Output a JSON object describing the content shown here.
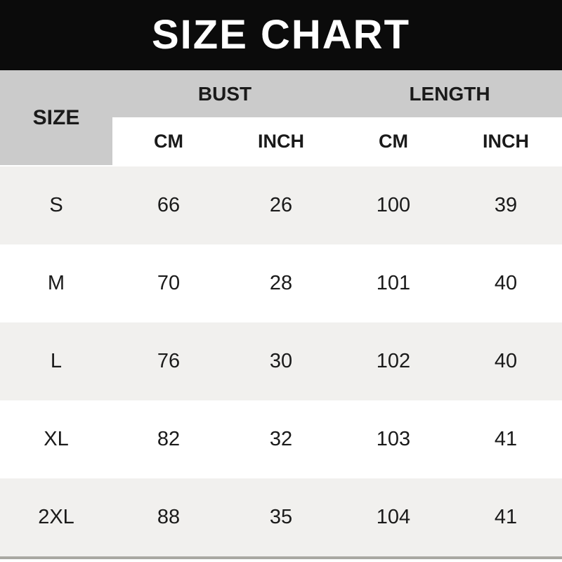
{
  "banner": {
    "title": "SIZE CHART"
  },
  "table": {
    "size_header": "SIZE",
    "group_headers": [
      {
        "label": "BUST"
      },
      {
        "label": "LENGTH"
      }
    ],
    "unit_headers": [
      "CM",
      "INCH",
      "CM",
      "INCH"
    ],
    "rows": [
      {
        "size": "S",
        "bust_cm": "66",
        "bust_inch": "26",
        "length_cm": "100",
        "length_inch": "39"
      },
      {
        "size": "M",
        "bust_cm": "70",
        "bust_inch": "28",
        "length_cm": "101",
        "length_inch": "40"
      },
      {
        "size": "L",
        "bust_cm": "76",
        "bust_inch": "30",
        "length_cm": "102",
        "length_inch": "40"
      },
      {
        "size": "XL",
        "bust_cm": "82",
        "bust_inch": "32",
        "length_cm": "103",
        "length_inch": "41"
      },
      {
        "size": "2XL",
        "bust_cm": "88",
        "bust_inch": "35",
        "length_cm": "104",
        "length_inch": "41"
      }
    ]
  },
  "colors": {
    "banner_bg": "#0b0b0b",
    "banner_text": "#ffffff",
    "header_gray": "#cbcbcb",
    "row_alt": "#f1f0ee",
    "row_plain": "#ffffff",
    "text": "#1a1a1a",
    "bottom_line": "#a9a8a2"
  }
}
